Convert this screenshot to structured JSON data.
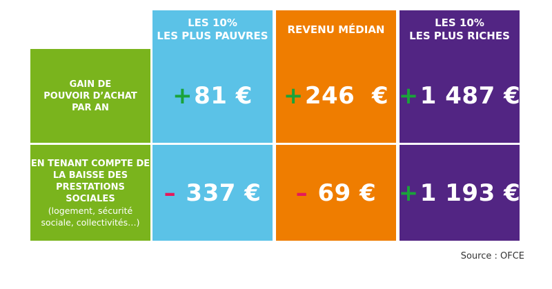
{
  "chart_data": {
    "type": "table",
    "columns": [
      {
        "label_line1": "LES 10%",
        "label_line2": "LES PLUS PAUVRES",
        "color": "#5bc2e7"
      },
      {
        "label_line1": "REVENU MÉDIAN",
        "label_line2": "",
        "color": "#ef7d00"
      },
      {
        "label_line1": "LES 10%",
        "label_line2": "LES PLUS RICHES",
        "color": "#522583"
      }
    ],
    "rows": [
      {
        "label_lines": [
          "GAIN DE",
          "POUVOIR D’ACHAT",
          "PAR AN"
        ],
        "sub_lines": [],
        "values": [
          {
            "sign": "+",
            "amount": "81 €"
          },
          {
            "sign": "+",
            "amount": "246  €"
          },
          {
            "sign": "+",
            "amount": "1 487 €"
          }
        ]
      },
      {
        "label_lines": [
          "EN TENANT COMPTE DE",
          "LA BAISSE DES",
          "PRESTATIONS SOCIALES"
        ],
        "sub_lines": [
          "(logement, sécurité",
          "sociale, collectivités…)"
        ],
        "values": [
          {
            "sign": "–",
            "amount": " 337 €"
          },
          {
            "sign": "–",
            "amount": " 69 €"
          },
          {
            "sign": "+",
            "amount": "1 193 €"
          }
        ]
      }
    ],
    "numeric_values": [
      [
        81,
        246,
        1487
      ],
      [
        -337,
        -69,
        1193
      ]
    ],
    "unit": "€",
    "row_label_color": "#7ab41d",
    "plus_color": "#1aa33a",
    "minus_color": "#e5195b"
  },
  "source": "Source : OFCE"
}
